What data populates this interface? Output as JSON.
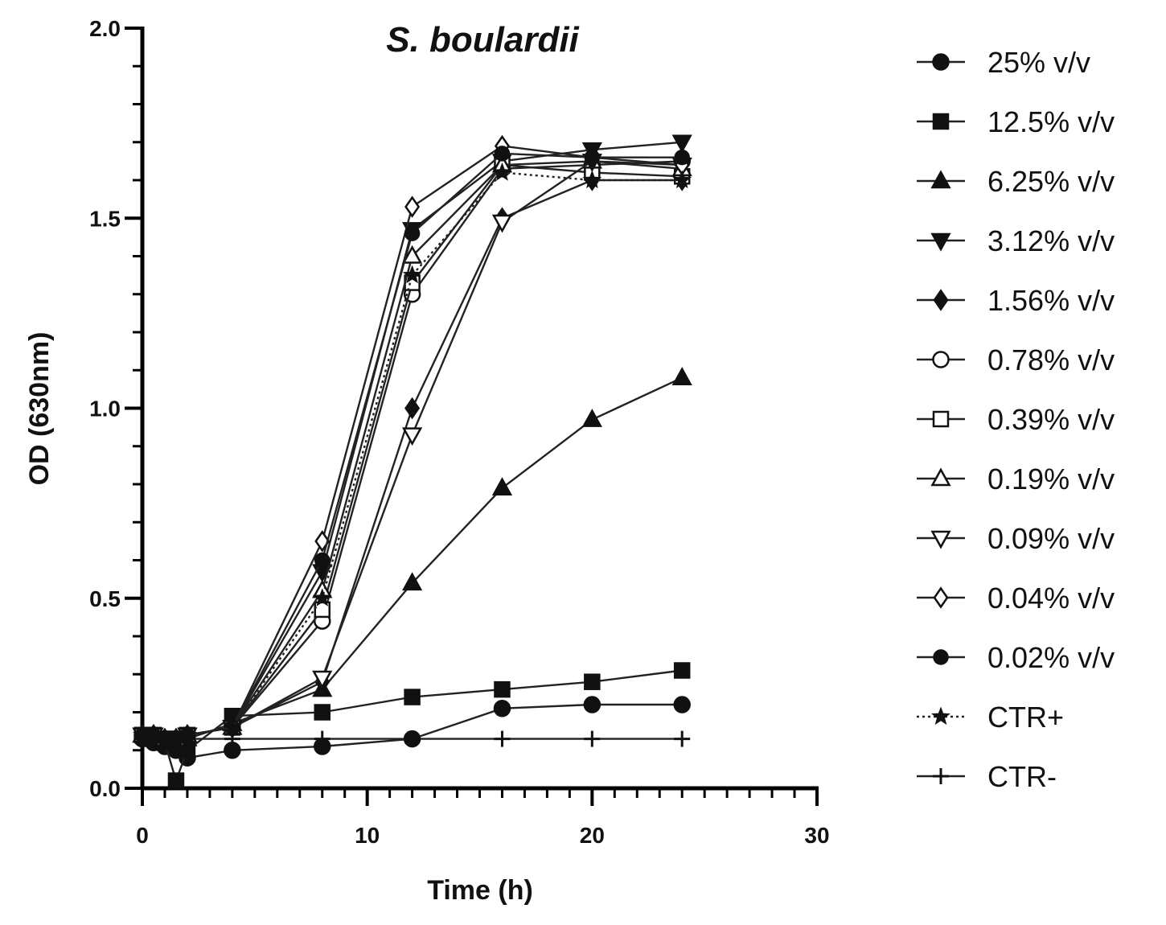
{
  "chart_data": {
    "type": "line",
    "title": "S. boulardii",
    "xlabel": "Time (h)",
    "ylabel": "OD (630nm)",
    "xlim": [
      0,
      30
    ],
    "ylim": [
      0,
      2.0
    ],
    "x_ticks": [
      "0",
      "10",
      "20",
      "30"
    ],
    "y_ticks": [
      "0.0",
      "0.5",
      "1.0",
      "1.5",
      "2.0"
    ],
    "legend_position": "right",
    "series": [
      {
        "name": "25% v/v",
        "marker": "circle-filled",
        "line": "solid",
        "x": [
          0,
          0.5,
          1,
          1.5,
          2,
          4,
          8,
          12,
          16,
          20,
          24
        ],
        "y": [
          0.13,
          0.12,
          0.11,
          0.1,
          0.08,
          0.1,
          0.11,
          0.13,
          0.21,
          0.22,
          0.22
        ]
      },
      {
        "name": "12.5% v/v",
        "marker": "square-filled",
        "line": "solid",
        "x": [
          0,
          0.5,
          1,
          1.5,
          2,
          4,
          8,
          12,
          16,
          20,
          24
        ],
        "y": [
          0.14,
          0.13,
          0.12,
          0.02,
          0.1,
          0.19,
          0.2,
          0.24,
          0.26,
          0.28,
          0.31
        ]
      },
      {
        "name": "6.25% v/v",
        "marker": "triangle-up-filled",
        "line": "solid",
        "x": [
          0,
          0.5,
          1,
          1.5,
          2,
          4,
          8,
          12,
          16,
          20,
          24
        ],
        "y": [
          0.14,
          0.14,
          0.13,
          0.13,
          0.13,
          0.17,
          0.26,
          0.54,
          0.79,
          0.97,
          1.08
        ]
      },
      {
        "name": "3.12% v/v",
        "marker": "triangle-down-filled",
        "line": "solid",
        "x": [
          0,
          0.5,
          1,
          1.5,
          2,
          4,
          8,
          12,
          16,
          20,
          24
        ],
        "y": [
          0.14,
          0.14,
          0.13,
          0.13,
          0.14,
          0.16,
          0.57,
          1.47,
          1.65,
          1.68,
          1.7
        ]
      },
      {
        "name": "1.56% v/v",
        "marker": "diamond-filled",
        "line": "solid",
        "x": [
          0,
          0.5,
          1,
          1.5,
          2,
          4,
          8,
          12,
          16,
          20,
          24
        ],
        "y": [
          0.14,
          0.14,
          0.13,
          0.13,
          0.14,
          0.16,
          0.28,
          1.0,
          1.5,
          1.6,
          1.6
        ]
      },
      {
        "name": "0.78% v/v",
        "marker": "circle-open",
        "line": "solid",
        "x": [
          0,
          0.5,
          1,
          1.5,
          2,
          4,
          8,
          12,
          16,
          20,
          24
        ],
        "y": [
          0.14,
          0.14,
          0.13,
          0.13,
          0.14,
          0.16,
          0.44,
          1.3,
          1.63,
          1.64,
          1.65
        ]
      },
      {
        "name": "0.39% v/v",
        "marker": "square-open",
        "line": "solid",
        "x": [
          0,
          0.5,
          1,
          1.5,
          2,
          4,
          8,
          12,
          16,
          20,
          24
        ],
        "y": [
          0.14,
          0.14,
          0.13,
          0.13,
          0.14,
          0.16,
          0.47,
          1.33,
          1.64,
          1.62,
          1.61
        ]
      },
      {
        "name": "0.19% v/v",
        "marker": "triangle-up-open",
        "line": "solid",
        "x": [
          0,
          0.5,
          1,
          1.5,
          2,
          4,
          8,
          12,
          16,
          20,
          24
        ],
        "y": [
          0.14,
          0.14,
          0.13,
          0.13,
          0.14,
          0.16,
          0.52,
          1.4,
          1.64,
          1.65,
          1.63
        ]
      },
      {
        "name": "0.09% v/v",
        "marker": "triangle-down-open",
        "line": "solid",
        "x": [
          0,
          0.5,
          1,
          1.5,
          2,
          4,
          8,
          12,
          16,
          20,
          24
        ],
        "y": [
          0.14,
          0.14,
          0.13,
          0.13,
          0.14,
          0.16,
          0.29,
          0.93,
          1.49,
          1.65,
          1.64
        ]
      },
      {
        "name": "0.04% v/v",
        "marker": "diamond-open",
        "line": "solid",
        "x": [
          0,
          0.5,
          1,
          1.5,
          2,
          4,
          8,
          12,
          16,
          20,
          24
        ],
        "y": [
          0.14,
          0.14,
          0.13,
          0.13,
          0.14,
          0.16,
          0.65,
          1.53,
          1.69,
          1.66,
          1.64
        ]
      },
      {
        "name": "0.02% v/v",
        "marker": "hexagon-filled",
        "line": "solid",
        "x": [
          0,
          0.5,
          1,
          1.5,
          2,
          4,
          8,
          12,
          16,
          20,
          24
        ],
        "y": [
          0.14,
          0.14,
          0.13,
          0.13,
          0.14,
          0.16,
          0.6,
          1.46,
          1.67,
          1.66,
          1.66
        ]
      },
      {
        "name": "CTR+",
        "marker": "star",
        "line": "dotted",
        "x": [
          0,
          0.5,
          1,
          1.5,
          2,
          4,
          8,
          12,
          16,
          20,
          24
        ],
        "y": [
          0.14,
          0.14,
          0.13,
          0.13,
          0.14,
          0.16,
          0.5,
          1.35,
          1.62,
          1.6,
          1.6
        ]
      },
      {
        "name": "CTR-",
        "marker": "plus",
        "line": "solid",
        "x": [
          0,
          0.5,
          1,
          1.5,
          2,
          4,
          8,
          12,
          16,
          20,
          24
        ],
        "y": [
          0.13,
          0.13,
          0.13,
          0.13,
          0.13,
          0.13,
          0.13,
          0.13,
          0.13,
          0.13,
          0.13
        ]
      }
    ]
  }
}
